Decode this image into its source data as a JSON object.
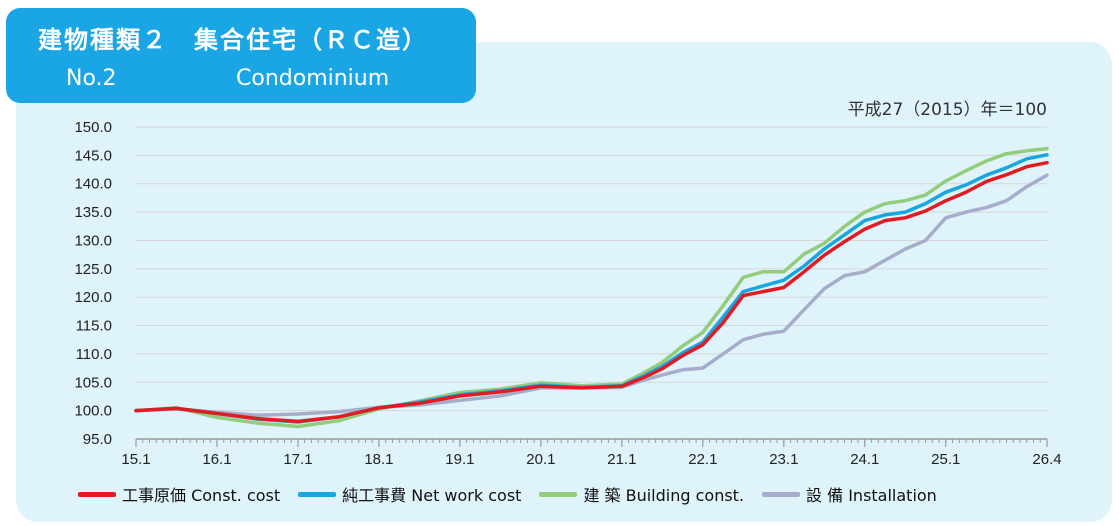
{
  "header": {
    "title_jp": "建物種類２　集合住宅（ＲＣ造）",
    "number": "No.2",
    "subtitle": "Condominium"
  },
  "base_note": "平成27（2015）年＝100",
  "colors": {
    "construction": "#e21b23",
    "network": "#17a7e0",
    "building": "#93cc7a",
    "installation": "#a6acc9",
    "panel": "#dff3fb",
    "title_box": "#1aa6e4"
  },
  "chart_data": {
    "type": "line",
    "title": "",
    "xlabel": "",
    "ylabel": "",
    "ylim": [
      95.0,
      150.0
    ],
    "y_ticks": [
      "95.0",
      "100.0",
      "105.0",
      "110.0",
      "115.0",
      "120.0",
      "125.0",
      "130.0",
      "135.0",
      "140.0",
      "145.0",
      "150.0"
    ],
    "x_ticks": [
      "15.1",
      "16.1",
      "17.1",
      "18.1",
      "19.1",
      "20.1",
      "21.1",
      "22.1",
      "23.1",
      "24.1",
      "25.1",
      "26.4"
    ],
    "grid": "horizontal",
    "legend_position": "bottom",
    "x_months": [
      "2015-01",
      "2015-07",
      "2016-01",
      "2016-07",
      "2017-01",
      "2017-07",
      "2018-01",
      "2018-07",
      "2019-01",
      "2019-07",
      "2020-01",
      "2020-07",
      "2021-01",
      "2021-04",
      "2021-07",
      "2021-10",
      "2022-01",
      "2022-04",
      "2022-07",
      "2022-10",
      "2023-01",
      "2023-04",
      "2023-07",
      "2023-10",
      "2024-01",
      "2024-04",
      "2024-07",
      "2024-10",
      "2025-01",
      "2025-04",
      "2025-07",
      "2025-10",
      "2026-01",
      "2026-04"
    ],
    "series": [
      {
        "key": "construction",
        "name": "工事原価 Const. cost",
        "values": [
          100.0,
          100.4,
          99.5,
          98.6,
          98.1,
          98.9,
          100.5,
          101.3,
          102.6,
          103.3,
          104.3,
          104.0,
          104.3,
          105.7,
          107.4,
          109.7,
          111.6,
          115.5,
          120.3,
          121.0,
          121.7,
          124.5,
          127.4,
          129.8,
          132.0,
          133.5,
          134.0,
          135.2,
          137.0,
          138.5,
          140.4,
          141.6,
          143.0,
          143.7
        ]
      },
      {
        "key": "network",
        "name": "純工事費 Net work cost",
        "values": [
          100.0,
          100.4,
          99.5,
          98.5,
          98.0,
          98.9,
          100.5,
          101.5,
          102.8,
          103.5,
          104.5,
          104.1,
          104.4,
          106.0,
          107.8,
          110.2,
          112.1,
          116.5,
          121.0,
          122.0,
          123.0,
          125.5,
          128.5,
          131.0,
          133.5,
          134.5,
          135.0,
          136.5,
          138.5,
          139.8,
          141.5,
          142.8,
          144.4,
          145.1
        ]
      },
      {
        "key": "building",
        "name": "建 築 Building const.",
        "values": [
          100.0,
          100.5,
          98.8,
          97.8,
          97.2,
          98.2,
          100.3,
          101.7,
          103.2,
          103.8,
          104.9,
          104.4,
          104.7,
          106.5,
          108.5,
          111.4,
          113.8,
          118.5,
          123.5,
          124.5,
          124.5,
          127.6,
          129.5,
          132.5,
          135.0,
          136.5,
          137.0,
          138.0,
          140.5,
          142.3,
          144.0,
          145.3,
          145.8,
          146.2
        ]
      },
      {
        "key": "installation",
        "name": "設 備 Installation",
        "values": [
          100.0,
          100.3,
          99.7,
          99.2,
          99.4,
          99.8,
          100.6,
          101.0,
          101.8,
          102.6,
          104.0,
          104.0,
          104.1,
          105.3,
          106.3,
          107.2,
          107.5,
          110.0,
          112.5,
          113.5,
          114.0,
          117.8,
          121.5,
          123.8,
          124.5,
          126.5,
          128.5,
          130.0,
          134.0,
          135.0,
          135.8,
          137.0,
          139.5,
          141.5
        ]
      }
    ]
  }
}
